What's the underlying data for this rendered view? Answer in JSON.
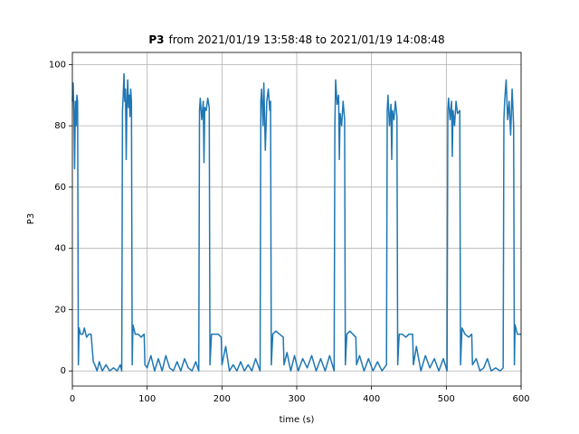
{
  "chart_data": {
    "type": "line",
    "title": {
      "bold": "P3",
      "rest": "from 2021/01/19 13:58:48 to 2021/01/19 14:08:48"
    },
    "xlabel": "time (s)",
    "ylabel": "P3",
    "color": "#1f77b4",
    "grid": true,
    "xlim": [
      0,
      600
    ],
    "ylim": [
      -4.95,
      103.95
    ],
    "xticks": [
      0,
      100,
      200,
      300,
      400,
      500,
      600
    ],
    "yticks": [
      0,
      20,
      40,
      60,
      80,
      100
    ],
    "x": [
      0,
      1,
      2,
      3,
      4,
      5,
      6,
      7,
      8,
      9,
      11,
      14,
      16,
      19,
      22,
      25,
      28,
      30,
      33,
      36,
      40,
      45,
      50,
      55,
      60,
      64,
      66,
      67,
      68,
      69,
      70,
      71,
      72,
      73,
      74,
      75,
      76,
      77,
      78,
      79,
      80,
      81,
      84,
      88,
      92,
      96,
      97,
      100,
      105,
      110,
      115,
      120,
      125,
      130,
      135,
      140,
      145,
      150,
      155,
      160,
      165,
      169,
      170,
      171,
      173,
      175,
      176,
      177,
      179,
      181,
      183,
      184,
      186,
      190,
      195,
      199,
      200,
      205,
      210,
      215,
      220,
      225,
      230,
      235,
      240,
      245,
      251,
      252,
      253,
      255,
      256,
      258,
      260,
      262,
      264,
      265,
      266,
      268,
      272,
      277,
      282,
      283,
      287,
      292,
      297,
      302,
      308,
      314,
      320,
      326,
      332,
      338,
      344,
      350,
      351,
      352,
      354,
      356,
      357,
      358,
      360,
      362,
      364,
      365,
      367,
      371,
      375,
      379,
      380,
      384,
      390,
      396,
      402,
      408,
      414,
      420,
      421,
      422,
      424,
      426,
      427,
      428,
      430,
      432,
      434,
      435,
      437,
      441,
      446,
      450,
      455,
      456,
      460,
      466,
      472,
      478,
      484,
      490,
      496,
      501,
      502,
      503,
      505,
      507,
      508,
      509,
      511,
      513,
      515,
      518,
      519,
      521,
      525,
      530,
      534,
      535,
      540,
      545,
      550,
      555,
      560,
      566,
      572,
      576,
      577,
      578,
      580,
      582,
      584,
      586,
      588,
      590,
      591,
      592,
      595,
      600
    ],
    "values": [
      88,
      94,
      85,
      66,
      88,
      80,
      90,
      88,
      2,
      14,
      12,
      12,
      14,
      11,
      12,
      12,
      3,
      2,
      0,
      3,
      0,
      2,
      0,
      1,
      0,
      2,
      0,
      85,
      90,
      97,
      88,
      92,
      69,
      88,
      95,
      86,
      90,
      83,
      92,
      88,
      2,
      15,
      12,
      12,
      11,
      12,
      2,
      1,
      5,
      0,
      4,
      0,
      5,
      1,
      0,
      3,
      0,
      4,
      1,
      0,
      3,
      0,
      85,
      89,
      82,
      88,
      68,
      86,
      85,
      89,
      86,
      2,
      12,
      12,
      12,
      11,
      2,
      8,
      0,
      2,
      0,
      3,
      0,
      2,
      0,
      4,
      0,
      88,
      92,
      80,
      94,
      72,
      88,
      92,
      85,
      88,
      2,
      12,
      13,
      12,
      11,
      2,
      6,
      0,
      5,
      0,
      4,
      1,
      5,
      0,
      4,
      0,
      5,
      0,
      80,
      95,
      87,
      90,
      69,
      84,
      80,
      88,
      82,
      2,
      12,
      13,
      12,
      11,
      2,
      5,
      0,
      4,
      0,
      3,
      0,
      2,
      85,
      90,
      80,
      87,
      69,
      85,
      82,
      88,
      83,
      2,
      12,
      12,
      11,
      12,
      12,
      2,
      8,
      0,
      5,
      1,
      4,
      0,
      4,
      0,
      85,
      89,
      82,
      88,
      70,
      85,
      80,
      88,
      84,
      85,
      2,
      14,
      12,
      11,
      12,
      2,
      4,
      0,
      1,
      4,
      0,
      1,
      0,
      1,
      82,
      88,
      95,
      82,
      88,
      77,
      92,
      80,
      2,
      15,
      12,
      12
    ]
  }
}
